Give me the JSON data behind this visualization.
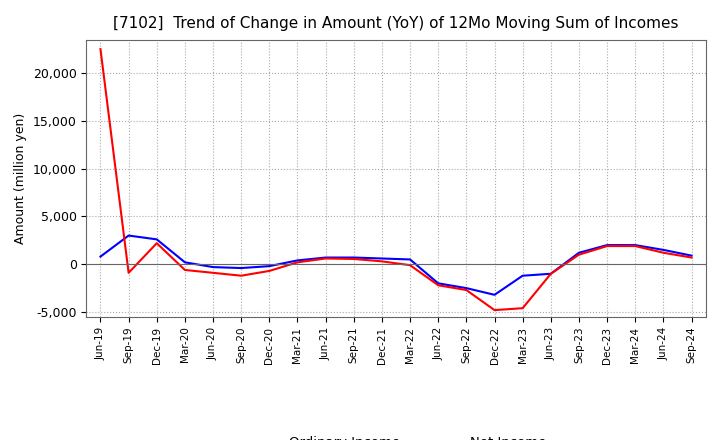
{
  "title": "[7102]  Trend of Change in Amount (YoY) of 12Mo Moving Sum of Incomes",
  "ylabel": "Amount (million yen)",
  "x_labels": [
    "Jun-19",
    "Sep-19",
    "Dec-19",
    "Mar-20",
    "Jun-20",
    "Sep-20",
    "Dec-20",
    "Mar-21",
    "Jun-21",
    "Sep-21",
    "Dec-21",
    "Mar-22",
    "Jun-22",
    "Sep-22",
    "Dec-22",
    "Mar-23",
    "Jun-23",
    "Sep-23",
    "Dec-23",
    "Mar-24",
    "Jun-24",
    "Sep-24"
  ],
  "ordinary_income": [
    800,
    3000,
    2600,
    200,
    -300,
    -400,
    -200,
    400,
    700,
    700,
    600,
    500,
    -2000,
    -2500,
    -3200,
    -1200,
    -1000,
    1200,
    2000,
    2000,
    1500,
    900
  ],
  "net_income": [
    22500,
    -900,
    2200,
    -600,
    -900,
    -1200,
    -700,
    200,
    600,
    550,
    300,
    -100,
    -2200,
    -2700,
    -4800,
    -4600,
    -1000,
    1000,
    1900,
    1900,
    1200,
    700
  ],
  "ordinary_color": "#0000ff",
  "net_color": "#ff0000",
  "ylim": [
    -5500,
    23500
  ],
  "yticks": [
    -5000,
    0,
    5000,
    10000,
    15000,
    20000
  ],
  "background_color": "#ffffff",
  "grid_color": "#aaaaaa"
}
